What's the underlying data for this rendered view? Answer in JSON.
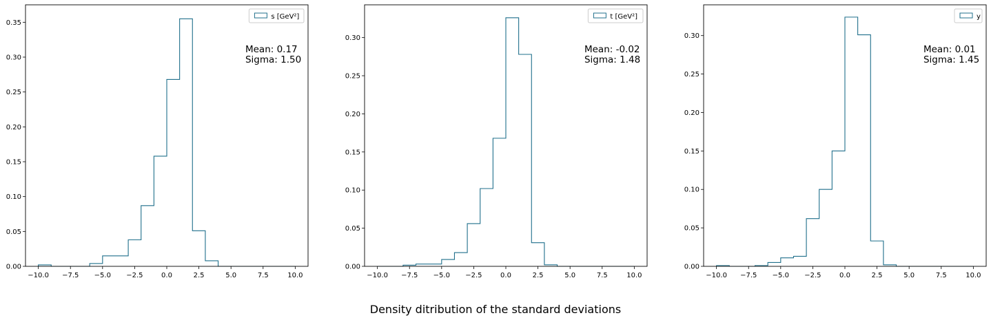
{
  "figure": {
    "suptitle": "Density ditribution of the standard deviations"
  },
  "colors": {
    "hist": "#1f6f8b",
    "axis": "#000000",
    "legend_border": "#cccccc"
  },
  "chart_data": [
    {
      "type": "histogram",
      "legend": "s [GeV²]",
      "legend_position": "top-right",
      "stats_lines": [
        "Mean: 0.17",
        "Sigma: 1.50"
      ],
      "xlim": [
        -11,
        11
      ],
      "ylim": [
        0,
        0.375
      ],
      "xticks": [
        -10,
        -7.5,
        -5,
        -2.5,
        0,
        2.5,
        5,
        7.5,
        10
      ],
      "xtick_labels": [
        "−10.0",
        "−7.5",
        "−5.0",
        "−2.5",
        "0.0",
        "2.5",
        "5.0",
        "7.5",
        "10.0"
      ],
      "yticks": [
        0,
        0.05,
        0.1,
        0.15,
        0.2,
        0.25,
        0.3,
        0.35
      ],
      "ytick_labels": [
        "0.00",
        "0.05",
        "0.10",
        "0.15",
        "0.20",
        "0.25",
        "0.30",
        "0.35"
      ],
      "bin_edges": [
        -10,
        -9,
        -8,
        -7,
        -6,
        -5,
        -4,
        -3,
        -2,
        -1,
        0,
        1,
        2,
        3,
        4,
        5,
        6,
        7,
        8,
        9,
        10
      ],
      "values": [
        0.002,
        0,
        0,
        0,
        0.004,
        0.015,
        0.015,
        0.038,
        0.087,
        0.158,
        0.268,
        0.355,
        0.051,
        0.008,
        0,
        0,
        0,
        0,
        0,
        0
      ]
    },
    {
      "type": "histogram",
      "legend": "t [GeV²]",
      "legend_position": "top-right",
      "stats_lines": [
        "Mean: -0.02",
        "Sigma: 1.48"
      ],
      "xlim": [
        -11,
        11
      ],
      "ylim": [
        0,
        0.343
      ],
      "xticks": [
        -10,
        -7.5,
        -5,
        -2.5,
        0,
        2.5,
        5,
        7.5,
        10
      ],
      "xtick_labels": [
        "−10.0",
        "−7.5",
        "−5.0",
        "−2.5",
        "0.0",
        "2.5",
        "5.0",
        "7.5",
        "10.0"
      ],
      "yticks": [
        0,
        0.05,
        0.1,
        0.15,
        0.2,
        0.25,
        0.3
      ],
      "ytick_labels": [
        "0.00",
        "0.05",
        "0.10",
        "0.15",
        "0.20",
        "0.25",
        "0.30"
      ],
      "bin_edges": [
        -10,
        -9,
        -8,
        -7,
        -6,
        -5,
        -4,
        -3,
        -2,
        -1,
        0,
        1,
        2,
        3,
        4,
        5,
        6,
        7,
        8,
        9,
        10
      ],
      "values": [
        0,
        0,
        0.0015,
        0.003,
        0.003,
        0.009,
        0.018,
        0.056,
        0.102,
        0.168,
        0.326,
        0.278,
        0.031,
        0.002,
        0,
        0,
        0,
        0,
        0,
        0
      ]
    },
    {
      "type": "histogram",
      "legend": "y",
      "legend_position": "top-right",
      "stats_lines": [
        "Mean: 0.01",
        "Sigma: 1.45"
      ],
      "xlim": [
        -11,
        11
      ],
      "ylim": [
        0,
        0.34
      ],
      "xticks": [
        -10,
        -7.5,
        -5,
        -2.5,
        0,
        2.5,
        5,
        7.5,
        10
      ],
      "xtick_labels": [
        "−10.0",
        "−7.5",
        "−5.0",
        "−2.5",
        "0.0",
        "2.5",
        "5.0",
        "7.5",
        "10.0"
      ],
      "yticks": [
        0,
        0.05,
        0.1,
        0.15,
        0.2,
        0.25,
        0.3
      ],
      "ytick_labels": [
        "0.00",
        "0.05",
        "0.10",
        "0.15",
        "0.20",
        "0.25",
        "0.30"
      ],
      "bin_edges": [
        -10,
        -9,
        -8,
        -7,
        -6,
        -5,
        -4,
        -3,
        -2,
        -1,
        0,
        1,
        2,
        3,
        4,
        5,
        6,
        7,
        8,
        9,
        10
      ],
      "values": [
        0.001,
        0,
        0,
        0.001,
        0.005,
        0.011,
        0.013,
        0.062,
        0.1,
        0.15,
        0.324,
        0.301,
        0.033,
        0.002,
        0,
        0,
        0,
        0,
        0,
        0
      ]
    }
  ]
}
